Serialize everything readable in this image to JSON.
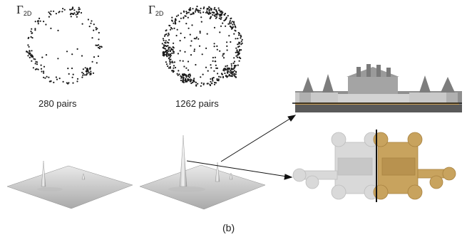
{
  "figure": {
    "gamma_symbol": "Γ",
    "gamma_subscript": "2D",
    "panel_left_label": "280 pairs",
    "panel_middle_label": "1262 pairs",
    "caption": "(b)"
  },
  "colors": {
    "dots": "#1a1a1a",
    "surface": "#cfcfcf",
    "facade_gold": "#c9a05a",
    "plan_gray": "#d6d6d6",
    "plan_gold": "#c8a35e",
    "line": "#111111"
  }
}
